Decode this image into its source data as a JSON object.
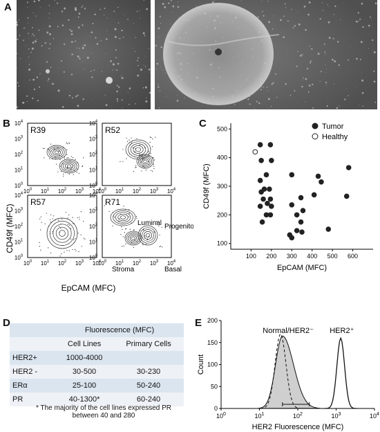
{
  "panel_labels": {
    "a": "A",
    "b": "B",
    "c": "C",
    "d": "D",
    "e": "E"
  },
  "panel_b": {
    "subplots": [
      "R39",
      "R52",
      "R57",
      "R71"
    ],
    "ylabel": "CD49f (MFC)",
    "xlabel": "EpCAM (MFC)",
    "tick_labels": [
      "10",
      "10",
      "10",
      "10",
      "10"
    ],
    "tick_exps": [
      "0",
      "1",
      "2",
      "3",
      "4"
    ],
    "annotations": {
      "luminal": "Luminal",
      "progenitor": "Progenitor",
      "stroma": "Stroma",
      "basal": "Basal"
    }
  },
  "chart_data": {
    "type": "scatter",
    "xlabel": "EpCAM (MFC)",
    "ylabel": "CD49f (MFC)",
    "xlim": [
      0,
      700
    ],
    "ylim": [
      80,
      520
    ],
    "xticks": [
      "100",
      "200",
      "300",
      "400",
      "500",
      "600"
    ],
    "yticks": [
      "100",
      "200",
      "300",
      "400",
      "500"
    ],
    "legend_position": "top-right",
    "series": [
      {
        "name": "Tumor",
        "marker": "filled",
        "points": [
          [
            145,
            445
          ],
          [
            195,
            445
          ],
          [
            150,
            390
          ],
          [
            200,
            390
          ],
          [
            145,
            320
          ],
          [
            175,
            340
          ],
          [
            165,
            290
          ],
          [
            150,
            280
          ],
          [
            190,
            290
          ],
          [
            160,
            255
          ],
          [
            195,
            255
          ],
          [
            145,
            230
          ],
          [
            180,
            240
          ],
          [
            200,
            230
          ],
          [
            175,
            200
          ],
          [
            195,
            200
          ],
          [
            155,
            175
          ],
          [
            300,
            340
          ],
          [
            300,
            235
          ],
          [
            345,
            260
          ],
          [
            325,
            200
          ],
          [
            355,
            215
          ],
          [
            345,
            175
          ],
          [
            325,
            145
          ],
          [
            350,
            140
          ],
          [
            300,
            120
          ],
          [
            290,
            130
          ],
          [
            430,
            335
          ],
          [
            445,
            315
          ],
          [
            480,
            150
          ],
          [
            410,
            270
          ],
          [
            580,
            365
          ],
          [
            570,
            265
          ]
        ]
      },
      {
        "name": "Healthy",
        "marker": "open",
        "points": [
          [
            120,
            420
          ]
        ]
      }
    ]
  },
  "table_d": {
    "header_top": "Fluorescence (MFC)",
    "col_cell_lines": "Cell Lines",
    "col_primary": "Primary Cells",
    "rows": [
      {
        "marker": "HER2+",
        "cell_lines": "1000-4000",
        "primary": ""
      },
      {
        "marker": "HER2 -",
        "cell_lines": "30-500",
        "primary": "30-230"
      },
      {
        "marker": "ERα",
        "cell_lines": "25-100",
        "primary": "50-240"
      },
      {
        "marker": "PR",
        "cell_lines": "40-1300*",
        "primary": "60-240"
      }
    ],
    "footnote_line1": "* The majority of the cell lines expressed PR",
    "footnote_line2": "between 40 and 280"
  },
  "panel_e": {
    "ylabel": "Count",
    "xlabel": "HER2 Fluorescence (MFC)",
    "yticks": [
      "0",
      "50",
      "100",
      "150",
      "200"
    ],
    "xtick_exps": [
      "0",
      "1",
      "2",
      "3",
      "4"
    ],
    "label_normal": "Normal/HER2⁻",
    "label_her2": "HER2⁺"
  }
}
